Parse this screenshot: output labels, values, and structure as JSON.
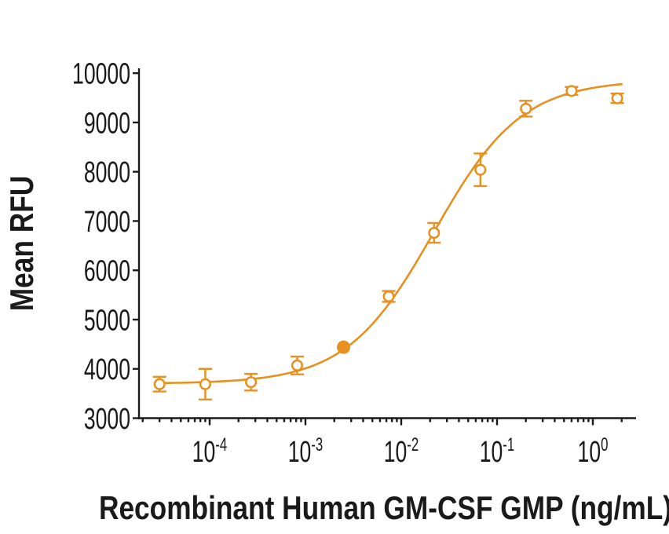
{
  "figure": {
    "background": "#ffffff"
  },
  "chart_data": {
    "type": "scatter",
    "subtype": "dose-response-curve-with-error-bars",
    "title": "",
    "xlabel": "Recombinant Human GM-CSF GMP (ng/mL)",
    "ylabel": "Mean RFU",
    "x_scale": "log10",
    "x_tick_exponents": [
      -4,
      -3,
      -2,
      -1,
      0
    ],
    "x_tick_labels": [
      "10⁻⁴",
      "10⁻³",
      "10⁻²",
      "10⁻¹",
      "10⁰"
    ],
    "x_range_approx": [
      1.8e-05,
      2.8
    ],
    "y_ticks": [
      3000,
      4000,
      5000,
      6000,
      7000,
      8000,
      9000,
      10000
    ],
    "y_range": [
      3000,
      10000
    ],
    "grid": "off",
    "legend": "none",
    "axis_color": "#1a1a1a",
    "series": [
      {
        "name": "Mean RFU",
        "color": "#E8901F",
        "marker": "open-circle",
        "points": [
          {
            "x": 3e-05,
            "y": 3690,
            "err": 150,
            "marker": "open"
          },
          {
            "x": 9e-05,
            "y": 3690,
            "err": 310,
            "marker": "open"
          },
          {
            "x": 0.00027,
            "y": 3730,
            "err": 170,
            "marker": "open"
          },
          {
            "x": 0.00082,
            "y": 4070,
            "err": 180,
            "marker": "open"
          },
          {
            "x": 0.0025,
            "y": 4440,
            "err": 0,
            "marker": "filled"
          },
          {
            "x": 0.0074,
            "y": 5470,
            "err": 110,
            "marker": "open"
          },
          {
            "x": 0.022,
            "y": 6760,
            "err": 200,
            "marker": "open"
          },
          {
            "x": 0.067,
            "y": 8040,
            "err": 330,
            "marker": "open"
          },
          {
            "x": 0.2,
            "y": 9280,
            "err": 160,
            "marker": "open"
          },
          {
            "x": 0.6,
            "y": 9640,
            "err": 80,
            "marker": "open"
          },
          {
            "x": 1.8,
            "y": 9490,
            "err": 95,
            "marker": "open"
          }
        ]
      }
    ],
    "fit_curve": {
      "model": "4PL",
      "bottom": 3700,
      "top": 9860,
      "ec50": 0.022,
      "hill": 0.95,
      "x_draw_range": [
        2.9e-05,
        2.0
      ]
    }
  }
}
